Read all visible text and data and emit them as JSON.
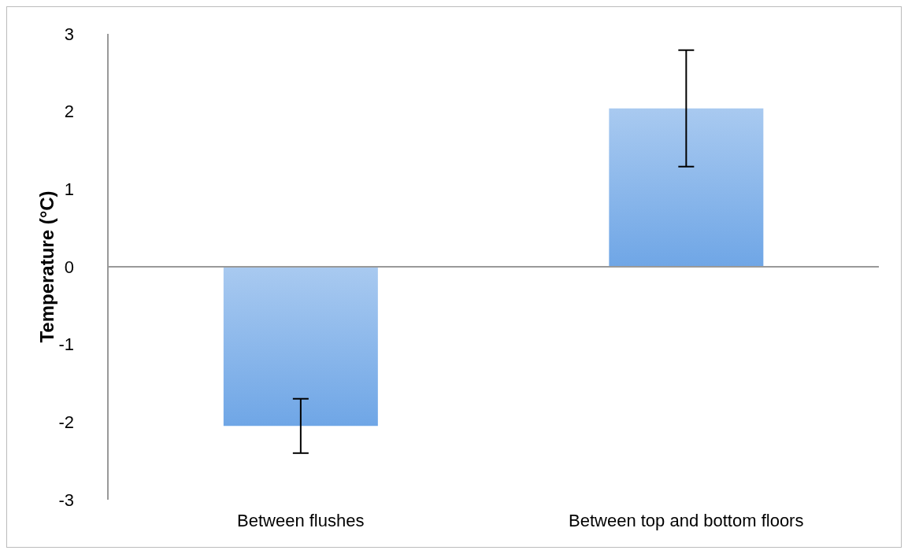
{
  "chart_data": {
    "type": "bar",
    "ylabel": "Temperature (°C)",
    "categories": [
      "Between flushes",
      "Between top and bottom floors"
    ],
    "values": [
      -2.05,
      2.04
    ],
    "errors": [
      0.35,
      0.75
    ],
    "color": "#6fa6e6",
    "ylim": [
      -3,
      3
    ],
    "yticks": [
      -3,
      -2,
      -1,
      0,
      1,
      2,
      3
    ],
    "legend": false
  }
}
